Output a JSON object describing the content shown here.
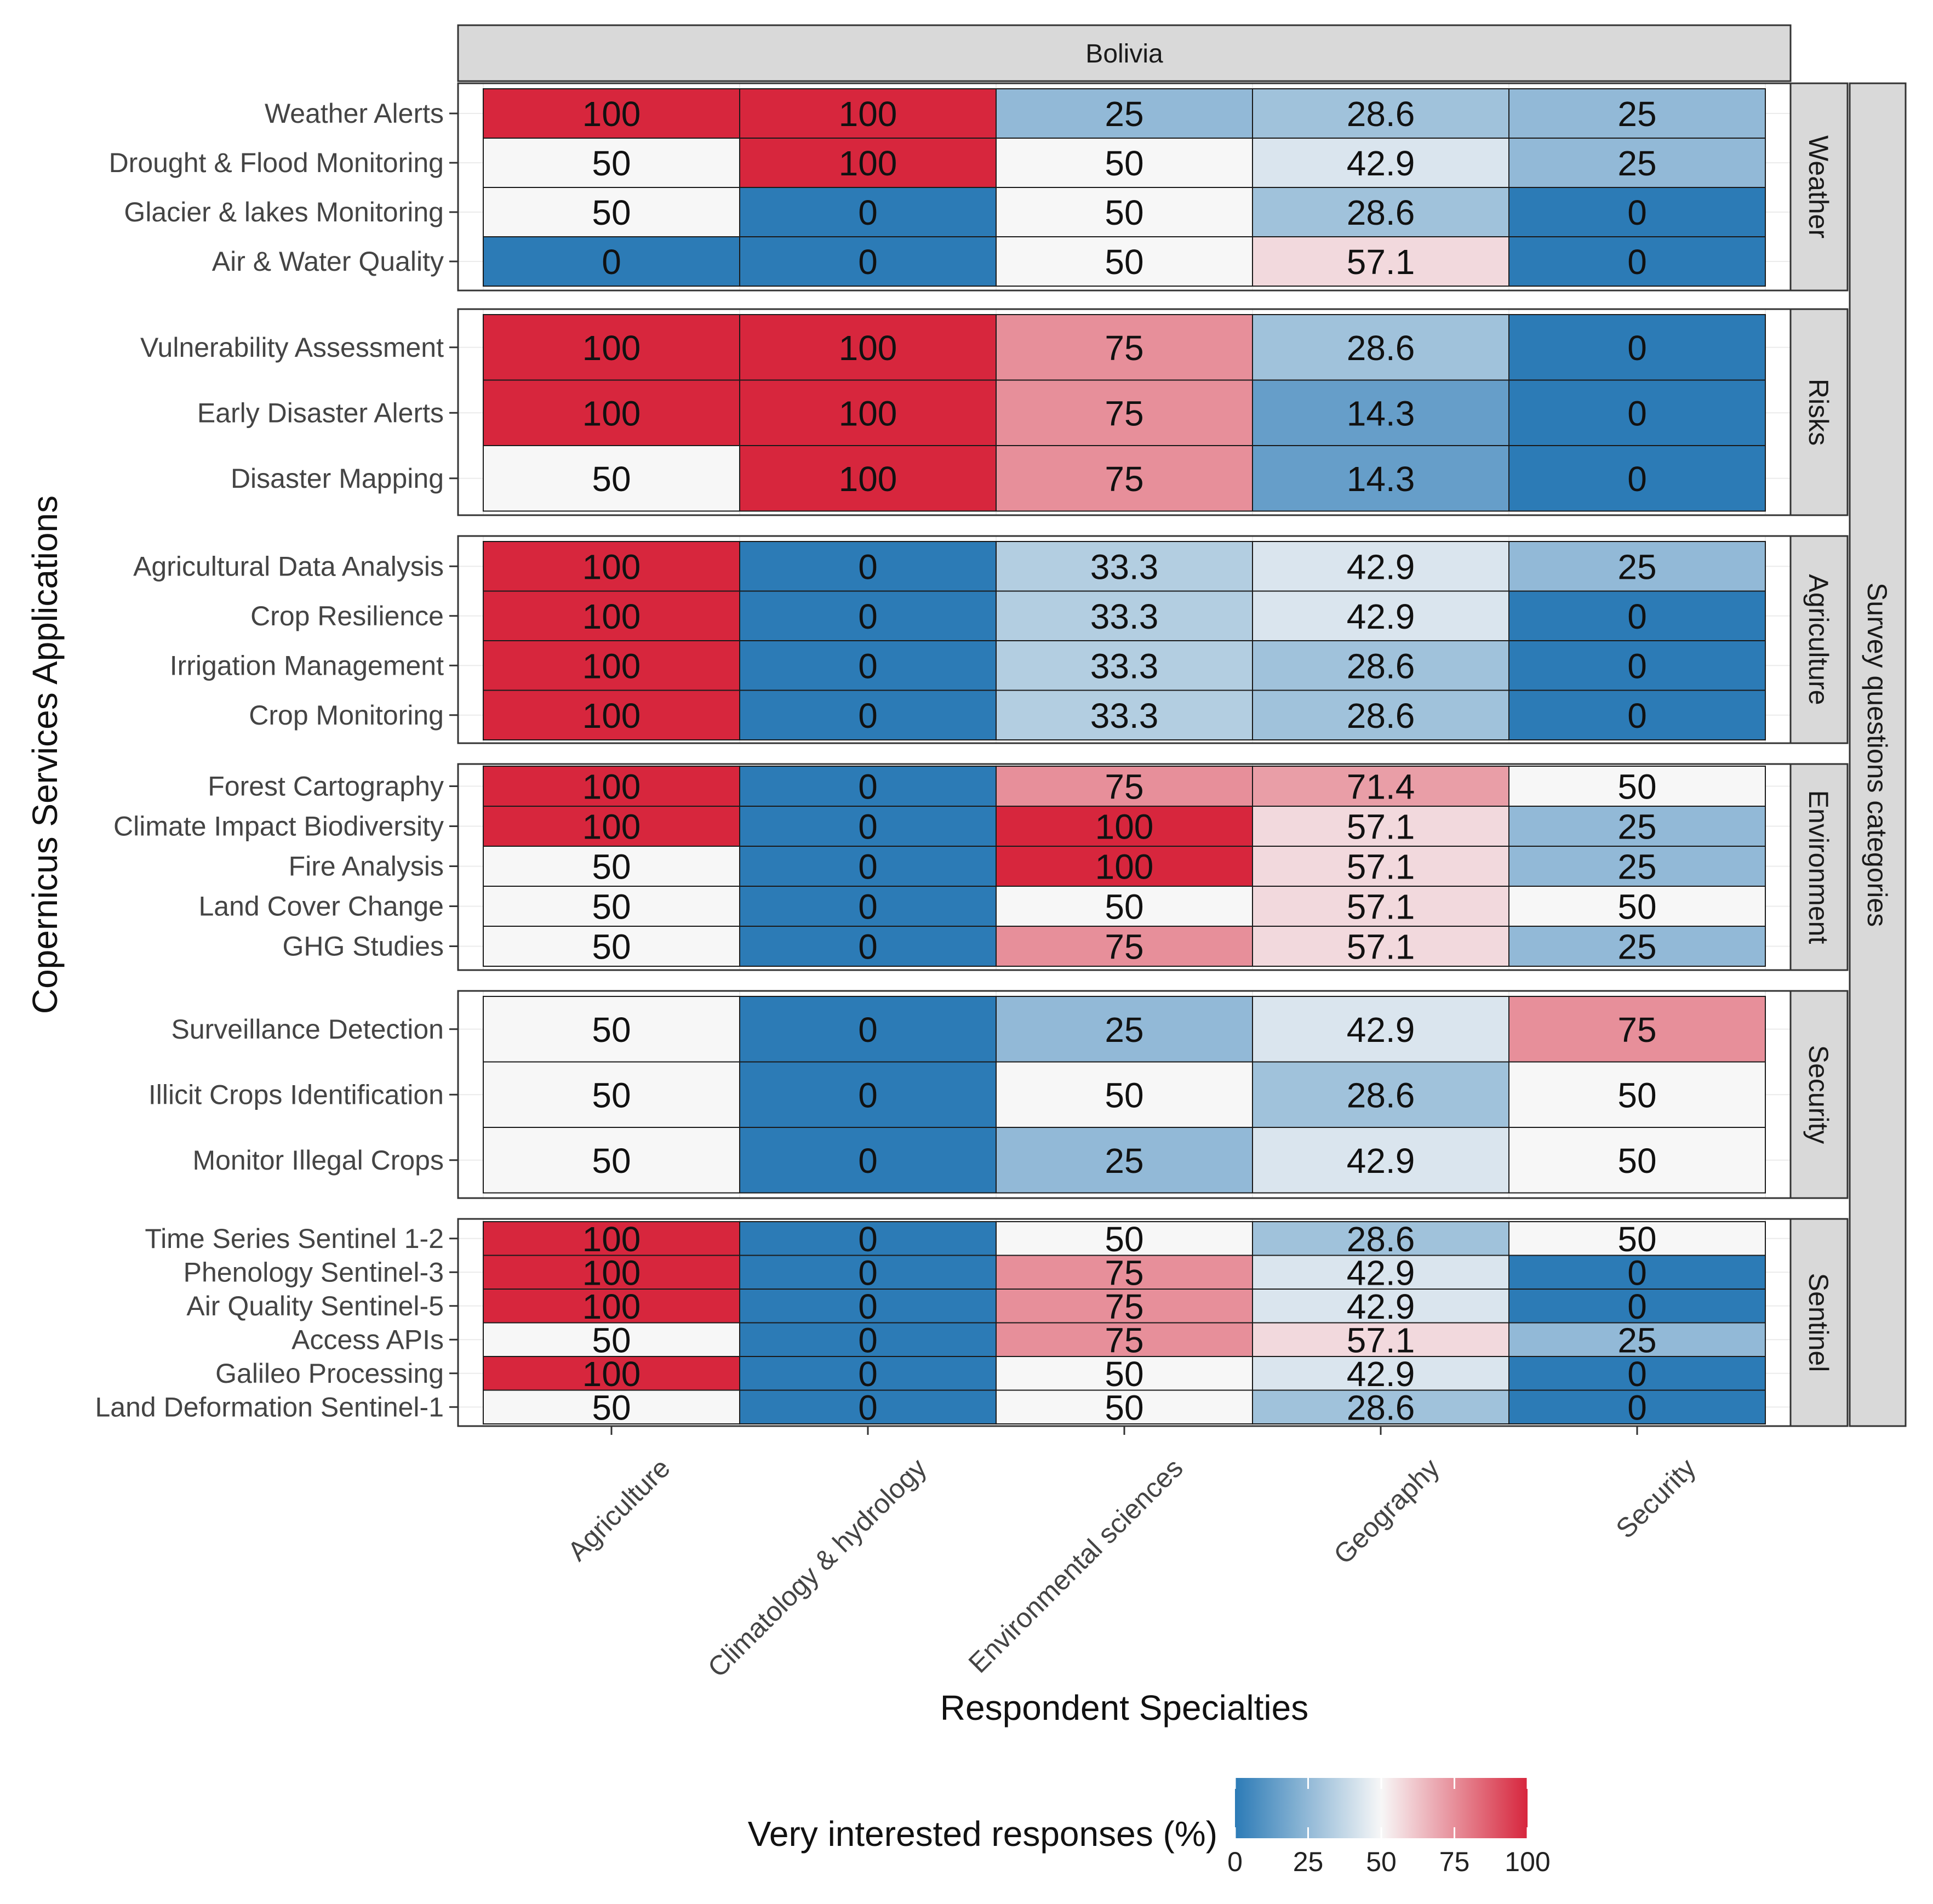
{
  "chart_data": {
    "type": "heatmap",
    "title": "Bolivia",
    "xlabel": "Respondent Specialties",
    "ylabel": "Copernicus Services Applications",
    "facet_label": "Survey questions categories",
    "categories": [
      "Agriculture",
      "Climatology & hydrology",
      "Environmental sciences",
      "Geography",
      "Security"
    ],
    "legend": {
      "title": "Very interested responses (%)",
      "ticks": [
        "0",
        "25",
        "50",
        "75",
        "100"
      ],
      "range": [
        0,
        100
      ],
      "low_color": "#2c7bb6",
      "mid_color": "#f7f7f7",
      "high_color": "#d7263d"
    },
    "groups": [
      {
        "name": "Weather",
        "rows": [
          {
            "label": "Weather Alerts",
            "values": [
              "100",
              "100",
              "25",
              "28.6",
              "25"
            ]
          },
          {
            "label": "Drought & Flood Monitoring",
            "values": [
              "50",
              "100",
              "50",
              "42.9",
              "25"
            ]
          },
          {
            "label": "Glacier & lakes Monitoring",
            "values": [
              "50",
              "0",
              "50",
              "28.6",
              "0"
            ]
          },
          {
            "label": "Air & Water Quality",
            "values": [
              "0",
              "0",
              "50",
              "57.1",
              "0"
            ]
          }
        ]
      },
      {
        "name": "Risks",
        "rows": [
          {
            "label": "Vulnerability Assessment",
            "values": [
              "100",
              "100",
              "75",
              "28.6",
              "0"
            ]
          },
          {
            "label": "Early Disaster Alerts",
            "values": [
              "100",
              "100",
              "75",
              "14.3",
              "0"
            ]
          },
          {
            "label": "Disaster Mapping",
            "values": [
              "50",
              "100",
              "75",
              "14.3",
              "0"
            ]
          }
        ]
      },
      {
        "name": "Agriculture",
        "rows": [
          {
            "label": "Agricultural Data Analysis",
            "values": [
              "100",
              "0",
              "33.3",
              "42.9",
              "25"
            ]
          },
          {
            "label": "Crop Resilience",
            "values": [
              "100",
              "0",
              "33.3",
              "42.9",
              "0"
            ]
          },
          {
            "label": "Irrigation Management",
            "values": [
              "100",
              "0",
              "33.3",
              "28.6",
              "0"
            ]
          },
          {
            "label": "Crop Monitoring",
            "values": [
              "100",
              "0",
              "33.3",
              "28.6",
              "0"
            ]
          }
        ]
      },
      {
        "name": "Environment",
        "rows": [
          {
            "label": "Forest Cartography",
            "values": [
              "100",
              "0",
              "75",
              "71.4",
              "50"
            ]
          },
          {
            "label": "Climate Impact Biodiversity",
            "values": [
              "100",
              "0",
              "100",
              "57.1",
              "25"
            ]
          },
          {
            "label": "Fire Analysis",
            "values": [
              "50",
              "0",
              "100",
              "57.1",
              "25"
            ]
          },
          {
            "label": "Land Cover Change",
            "values": [
              "50",
              "0",
              "50",
              "57.1",
              "50"
            ]
          },
          {
            "label": "GHG Studies",
            "values": [
              "50",
              "0",
              "75",
              "57.1",
              "25"
            ]
          }
        ]
      },
      {
        "name": "Security",
        "rows": [
          {
            "label": "Surveillance Detection",
            "values": [
              "50",
              "0",
              "25",
              "42.9",
              "75"
            ]
          },
          {
            "label": "Illicit Crops Identification",
            "values": [
              "50",
              "0",
              "50",
              "28.6",
              "50"
            ]
          },
          {
            "label": "Monitor Illegal Crops",
            "values": [
              "50",
              "0",
              "25",
              "42.9",
              "50"
            ]
          }
        ]
      },
      {
        "name": "Sentinel",
        "rows": [
          {
            "label": "Time Series Sentinel 1-2",
            "values": [
              "100",
              "0",
              "50",
              "28.6",
              "50"
            ]
          },
          {
            "label": "Phenology Sentinel-3",
            "values": [
              "100",
              "0",
              "75",
              "42.9",
              "0"
            ]
          },
          {
            "label": "Air Quality Sentinel-5",
            "values": [
              "100",
              "0",
              "75",
              "42.9",
              "0"
            ]
          },
          {
            "label": "Access APIs",
            "values": [
              "50",
              "0",
              "75",
              "57.1",
              "25"
            ]
          },
          {
            "label": "Galileo Processing",
            "values": [
              "100",
              "0",
              "50",
              "42.9",
              "0"
            ]
          },
          {
            "label": "Land Deformation Sentinel-1",
            "values": [
              "50",
              "0",
              "50",
              "28.6",
              "0"
            ]
          }
        ]
      }
    ]
  }
}
